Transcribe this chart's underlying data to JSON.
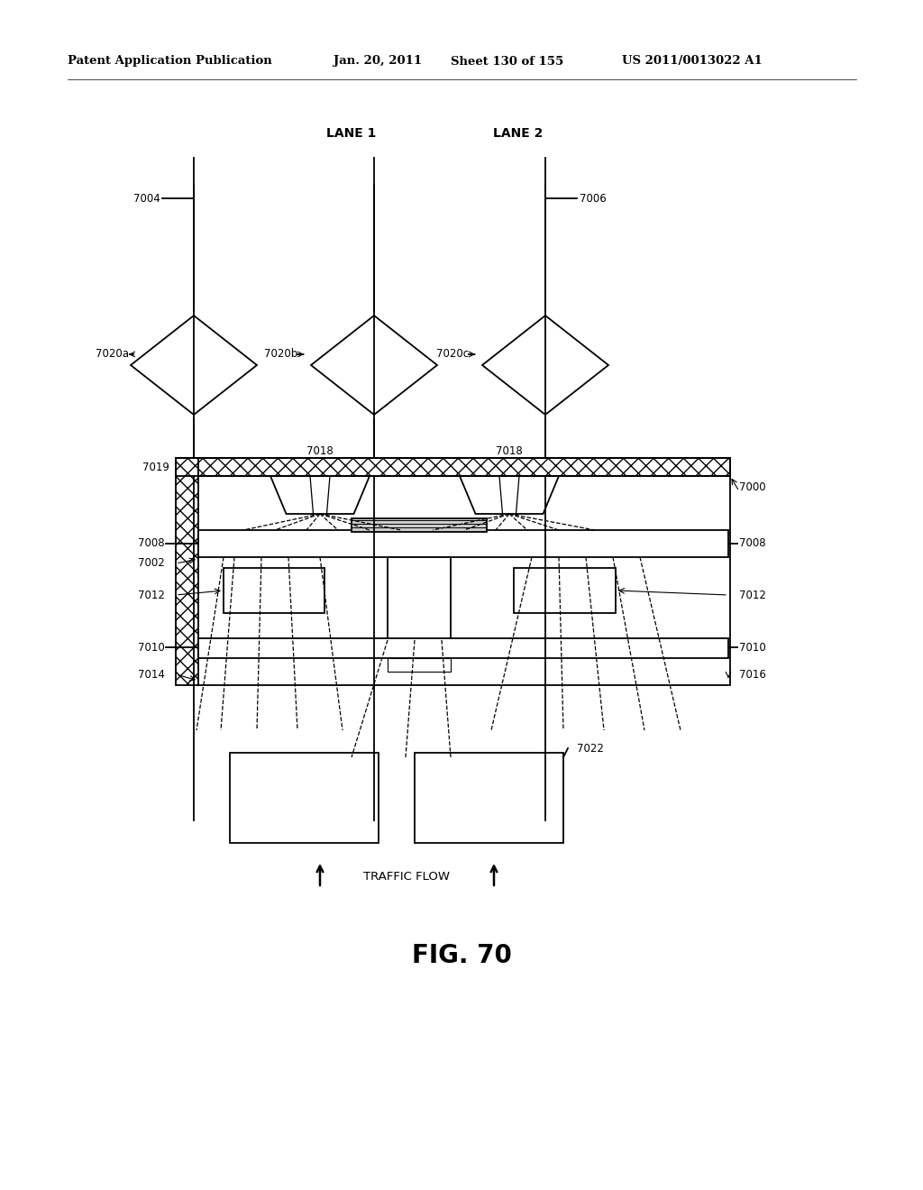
{
  "bg_color": "#ffffff",
  "line_color": "#000000",
  "header_text": "Patent Application Publication",
  "header_date": "Jan. 20, 2011",
  "header_sheet": "Sheet 130 of 155",
  "header_patent": "US 2011/0013022 A1",
  "fig_label": "FIG. 70",
  "traffic_flow_label": "TRAFFIC FLOW",
  "lane1_label": "LANE 1",
  "lane2_label": "LANE 2"
}
